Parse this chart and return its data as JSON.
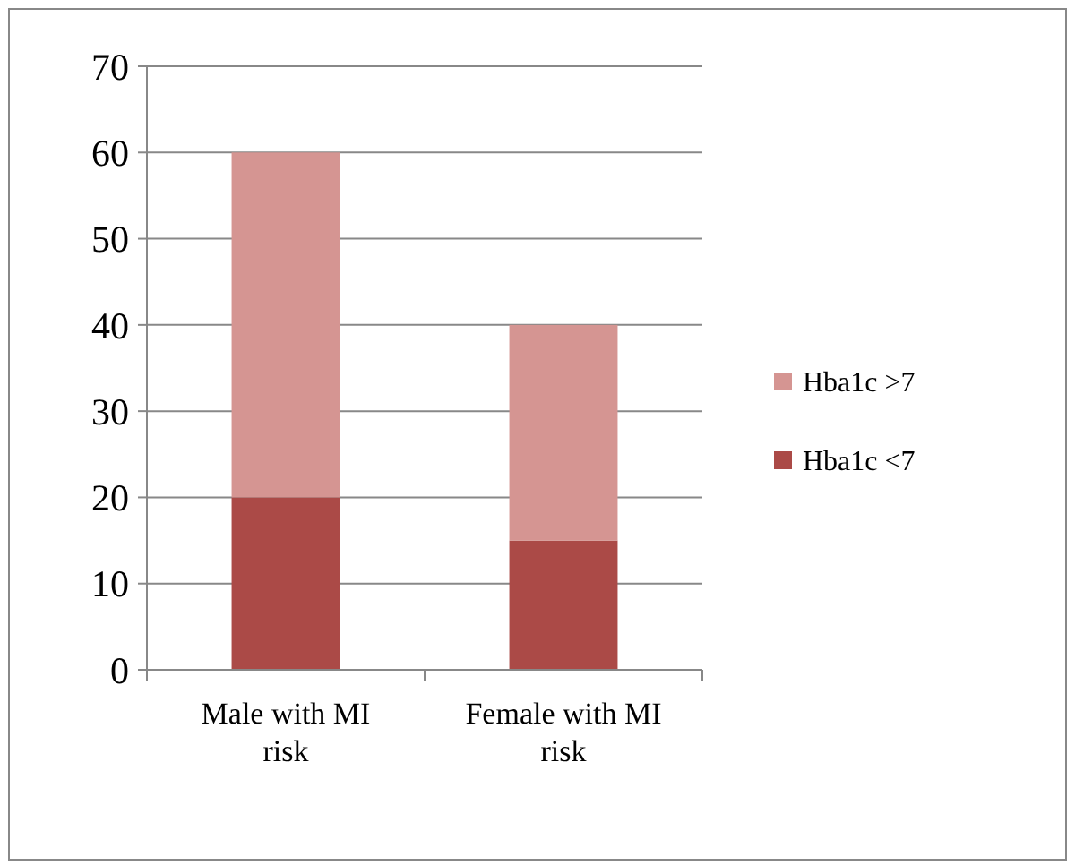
{
  "chart_data": {
    "type": "bar",
    "stacked": true,
    "categories": [
      "Male with MI risk",
      "Female with MI risk"
    ],
    "series": [
      {
        "name": "Hba1c <7",
        "color": "#ab4a47",
        "values": [
          20,
          15
        ]
      },
      {
        "name": "Hba1c >7",
        "color": "#d59592",
        "values": [
          40,
          25
        ]
      }
    ],
    "ylim": [
      0,
      70
    ],
    "yticks": [
      0,
      10,
      20,
      30,
      40,
      50,
      60,
      70
    ],
    "grid": "y",
    "legend": "right"
  }
}
